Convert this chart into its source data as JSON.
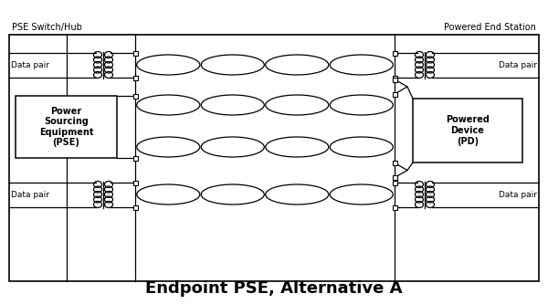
{
  "title": "Endpoint PSE, Alternative A",
  "title_fontsize": 13,
  "title_fontweight": "bold",
  "pse_label": "PSE Switch/Hub",
  "pes_label": "Powered End Station",
  "pse_box_text": "Power\nSourcing\nEquipment\n(PSE)",
  "pd_box_text": "Powered\nDevice\n(PD)",
  "data_pair_left_top": "Data pair",
  "data_pair_left_bottom": "Data pair",
  "data_pair_right_top": "Data pair",
  "data_pair_right_bottom": "Data pair",
  "bg_color": "#ffffff",
  "line_color": "#000000",
  "fig_width": 6.0,
  "fig_height": 3.33
}
